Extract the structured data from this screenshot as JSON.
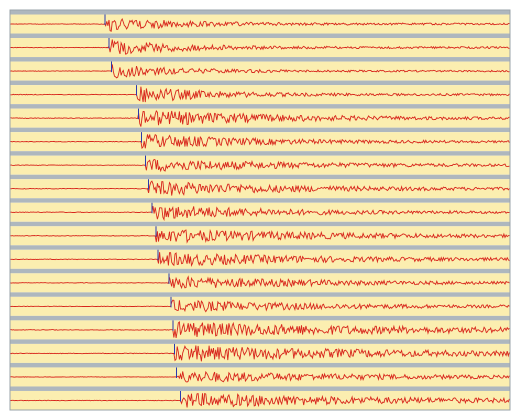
{
  "colors": {
    "band": "#fbeeb0",
    "separator": "#aeb7be",
    "border": "#9aa3aa",
    "trace": "#d8261c",
    "pick_marker": "#2a3bb0"
  },
  "chart_data": {
    "type": "line",
    "title": "",
    "xlabel": "",
    "ylabel": "",
    "grid": false,
    "legend": "none",
    "x_range": [
      0,
      100
    ],
    "trace_count": 17,
    "traces": [
      {
        "index": 1,
        "onset": 19.0,
        "peak_amplitude": 0.75,
        "coda_length": 15
      },
      {
        "index": 2,
        "onset": 19.8,
        "peak_amplitude": 0.8,
        "coda_length": 14
      },
      {
        "index": 3,
        "onset": 20.3,
        "peak_amplitude": 0.7,
        "coda_length": 13
      },
      {
        "index": 4,
        "onset": 25.3,
        "peak_amplitude": 0.85,
        "coda_length": 14
      },
      {
        "index": 5,
        "onset": 25.7,
        "peak_amplitude": 0.85,
        "coda_length": 25
      },
      {
        "index": 6,
        "onset": 26.3,
        "peak_amplitude": 0.75,
        "coda_length": 22
      },
      {
        "index": 7,
        "onset": 27.1,
        "peak_amplitude": 0.65,
        "coda_length": 30
      },
      {
        "index": 8,
        "onset": 27.7,
        "peak_amplitude": 0.75,
        "coda_length": 28
      },
      {
        "index": 9,
        "onset": 28.4,
        "peak_amplitude": 0.8,
        "coda_length": 22
      },
      {
        "index": 10,
        "onset": 29.2,
        "peak_amplitude": 0.7,
        "coda_length": 35
      },
      {
        "index": 11,
        "onset": 29.6,
        "peak_amplitude": 0.7,
        "coda_length": 32
      },
      {
        "index": 12,
        "onset": 31.8,
        "peak_amplitude": 0.65,
        "coda_length": 30
      },
      {
        "index": 13,
        "onset": 32.2,
        "peak_amplitude": 0.6,
        "coda_length": 33
      },
      {
        "index": 14,
        "onset": 32.6,
        "peak_amplitude": 0.8,
        "coda_length": 45
      },
      {
        "index": 15,
        "onset": 32.9,
        "peak_amplitude": 0.85,
        "coda_length": 40
      },
      {
        "index": 16,
        "onset": 33.3,
        "peak_amplitude": 0.6,
        "coda_length": 38
      },
      {
        "index": 17,
        "onset": 34.1,
        "peak_amplitude": 0.75,
        "coda_length": 40
      }
    ]
  }
}
